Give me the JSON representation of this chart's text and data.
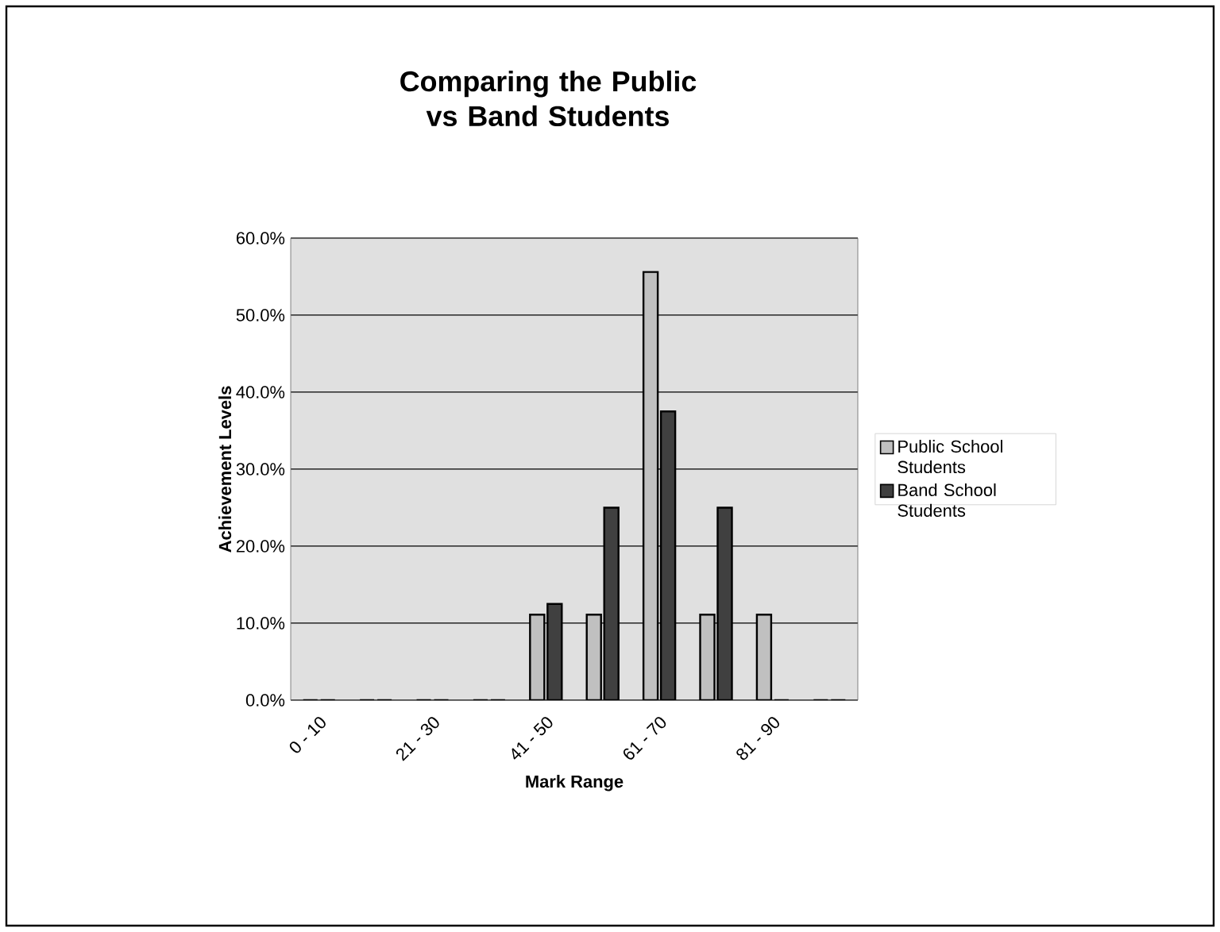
{
  "chart_data": {
    "type": "bar",
    "title": "Comparing the Public vs Band Students",
    "xlabel": "Mark Range",
    "ylabel": "Achievement Levels",
    "categories": [
      "0 - 10",
      null,
      "21 - 30",
      null,
      "41 - 50",
      null,
      "61 - 70",
      null,
      "81 - 90",
      null
    ],
    "series": [
      {
        "name": "Public School Students",
        "color": "#c0c0c0",
        "values": [
          0,
          0,
          0,
          0,
          11.1,
          11.1,
          55.6,
          11.1,
          11.1,
          0
        ]
      },
      {
        "name": "Band School Students",
        "color": "#404040",
        "values": [
          0,
          0,
          0,
          0,
          12.5,
          25,
          37.5,
          25,
          0,
          0
        ]
      }
    ],
    "ylim": [
      0,
      60
    ],
    "yticks": [
      {
        "value": 0,
        "label": "0.0%"
      },
      {
        "value": 10,
        "label": "10.0%"
      },
      {
        "value": 20,
        "label": "20.0%"
      },
      {
        "value": 30,
        "label": "30.0%"
      },
      {
        "value": 40,
        "label": "40.0%"
      },
      {
        "value": 50,
        "label": "50.0%"
      },
      {
        "value": 60,
        "label": "60.0%"
      }
    ],
    "grid": "y",
    "legend": "right"
  }
}
